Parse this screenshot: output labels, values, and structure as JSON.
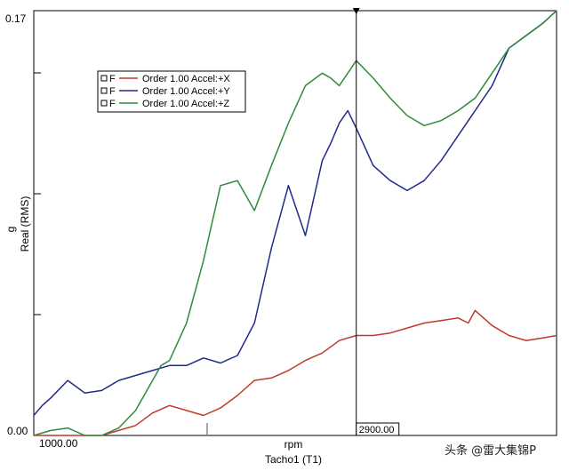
{
  "chart_data": {
    "type": "line",
    "xlabel": "rpm",
    "xsublabel": "Tacho1 (T1)",
    "ylabel": "g",
    "ysublabel": "Real (RMS)",
    "ylim": [
      0,
      0.17
    ],
    "xlim": [
      1000,
      4080
    ],
    "y_tick_labels": [
      "0.17",
      "0.00"
    ],
    "x_tick_labels": [
      "1000.00"
    ],
    "cursor": {
      "x": 2900,
      "label": "2900.00"
    },
    "legend_position": "top-left",
    "series": [
      {
        "name": "Order 1.00 Accel:+X",
        "prefix": "F",
        "color": "#c0392b",
        "x": [
          1000,
          1200,
          1400,
          1500,
          1600,
          1700,
          1800,
          1900,
          2000,
          2100,
          2200,
          2300,
          2400,
          2500,
          2600,
          2700,
          2800,
          2900,
          3000,
          3100,
          3200,
          3300,
          3400,
          3500,
          3560,
          3600,
          3700,
          3800,
          3900,
          4000,
          4080
        ],
        "y": [
          0.0,
          0.0,
          0.0,
          0.002,
          0.004,
          0.009,
          0.012,
          0.01,
          0.008,
          0.011,
          0.016,
          0.022,
          0.023,
          0.026,
          0.03,
          0.033,
          0.038,
          0.04,
          0.04,
          0.041,
          0.043,
          0.045,
          0.046,
          0.047,
          0.045,
          0.05,
          0.044,
          0.04,
          0.038,
          0.039,
          0.04
        ]
      },
      {
        "name": "Order 1.00 Accel:+Y",
        "prefix": "F",
        "color": "#1f2a8c",
        "x": [
          1000,
          1050,
          1100,
          1200,
          1300,
          1400,
          1500,
          1600,
          1700,
          1800,
          1900,
          2000,
          2100,
          2200,
          2300,
          2400,
          2500,
          2600,
          2700,
          2750,
          2800,
          2850,
          2900,
          3000,
          3100,
          3200,
          3300,
          3400,
          3500,
          3600,
          3700,
          3800,
          3900,
          4000,
          4080
        ],
        "y": [
          0.008,
          0.012,
          0.015,
          0.022,
          0.017,
          0.018,
          0.022,
          0.024,
          0.026,
          0.028,
          0.028,
          0.031,
          0.029,
          0.032,
          0.045,
          0.075,
          0.1,
          0.08,
          0.11,
          0.117,
          0.125,
          0.13,
          0.123,
          0.108,
          0.102,
          0.098,
          0.102,
          0.11,
          0.12,
          0.13,
          0.14,
          0.155,
          0.16,
          0.165,
          0.17
        ]
      },
      {
        "name": "Order 1.00 Accel:+Z",
        "prefix": "F",
        "color": "#2e8b3a",
        "x": [
          1000,
          1100,
          1200,
          1300,
          1400,
          1500,
          1600,
          1700,
          1750,
          1800,
          1900,
          2000,
          2100,
          2200,
          2300,
          2400,
          2500,
          2600,
          2700,
          2750,
          2800,
          2850,
          2900,
          3000,
          3100,
          3200,
          3300,
          3400,
          3500,
          3600,
          3700,
          3800,
          3900,
          4000,
          4080
        ],
        "y": [
          0.0,
          0.002,
          0.003,
          0.0,
          0.0,
          0.003,
          0.01,
          0.022,
          0.028,
          0.03,
          0.045,
          0.07,
          0.1,
          0.102,
          0.09,
          0.108,
          0.125,
          0.14,
          0.145,
          0.143,
          0.14,
          0.145,
          0.15,
          0.143,
          0.135,
          0.128,
          0.124,
          0.126,
          0.13,
          0.135,
          0.145,
          0.155,
          0.16,
          0.165,
          0.17
        ]
      }
    ]
  },
  "watermark_text": "头条 @雷大集锦P"
}
